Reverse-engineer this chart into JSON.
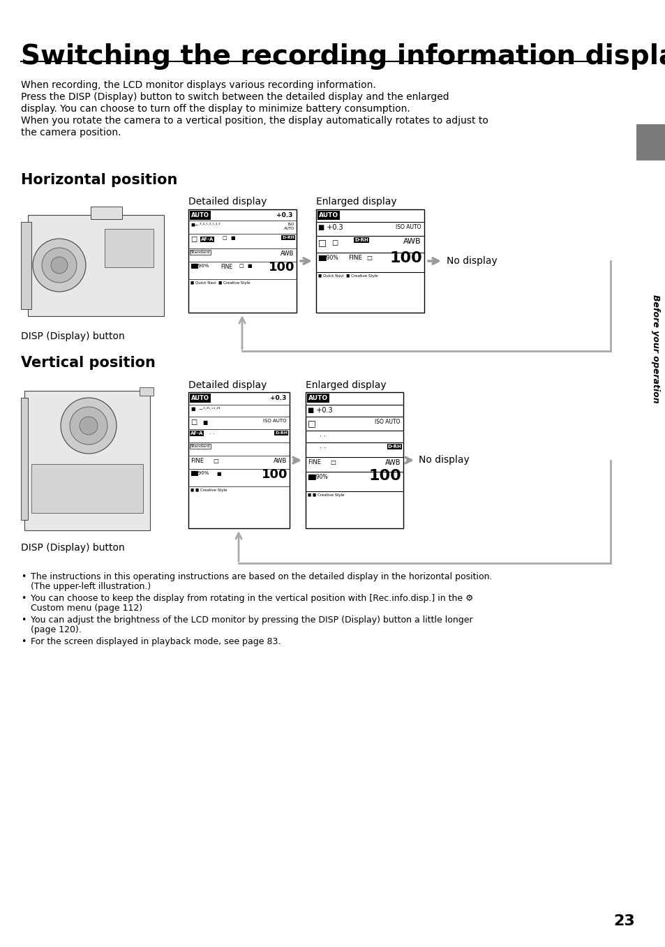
{
  "title": "Switching the recording information display",
  "body_text": [
    "When recording, the LCD monitor displays various recording information.",
    "Press the DISP (Display) button to switch between the detailed display and the enlarged",
    "display. You can choose to turn off the display to minimize battery consumption.",
    "When you rotate the camera to a vertical position, the display automatically rotates to adjust to",
    "the camera position."
  ],
  "section1_title": "Horizontal position",
  "section2_title": "Vertical position",
  "detailed_display_label": "Detailed display",
  "enlarged_display_label": "Enlarged display",
  "no_display_label": "No display",
  "disp_button_label": "DISP (Display) button",
  "sidebar_text": "Before your operation",
  "page_number": "23",
  "bullets": [
    "The instructions in this operating instructions are based on the detailed display in the horizontal position.\n    (The upper-left illustration.)",
    "You can choose to keep the display from rotating in the vertical position with [Rec.info.disp.] in the ⚙\n    Custom menu (page 112)",
    "You can adjust the brightness of the LCD monitor by pressing the DISP (Display) button a little longer\n    (page 120).",
    "For the screen displayed in playback mode, see page 83."
  ],
  "bg_color": "#ffffff",
  "text_color": "#000000",
  "sidebar_color": "#7a7a7a",
  "arrow_color": "#999999",
  "loop_color": "#aaaaaa",
  "title_font_size": 28,
  "section_font_size": 15,
  "body_font_size": 10,
  "label_font_size": 10,
  "bullet_font_size": 9,
  "page_num_font_size": 16
}
